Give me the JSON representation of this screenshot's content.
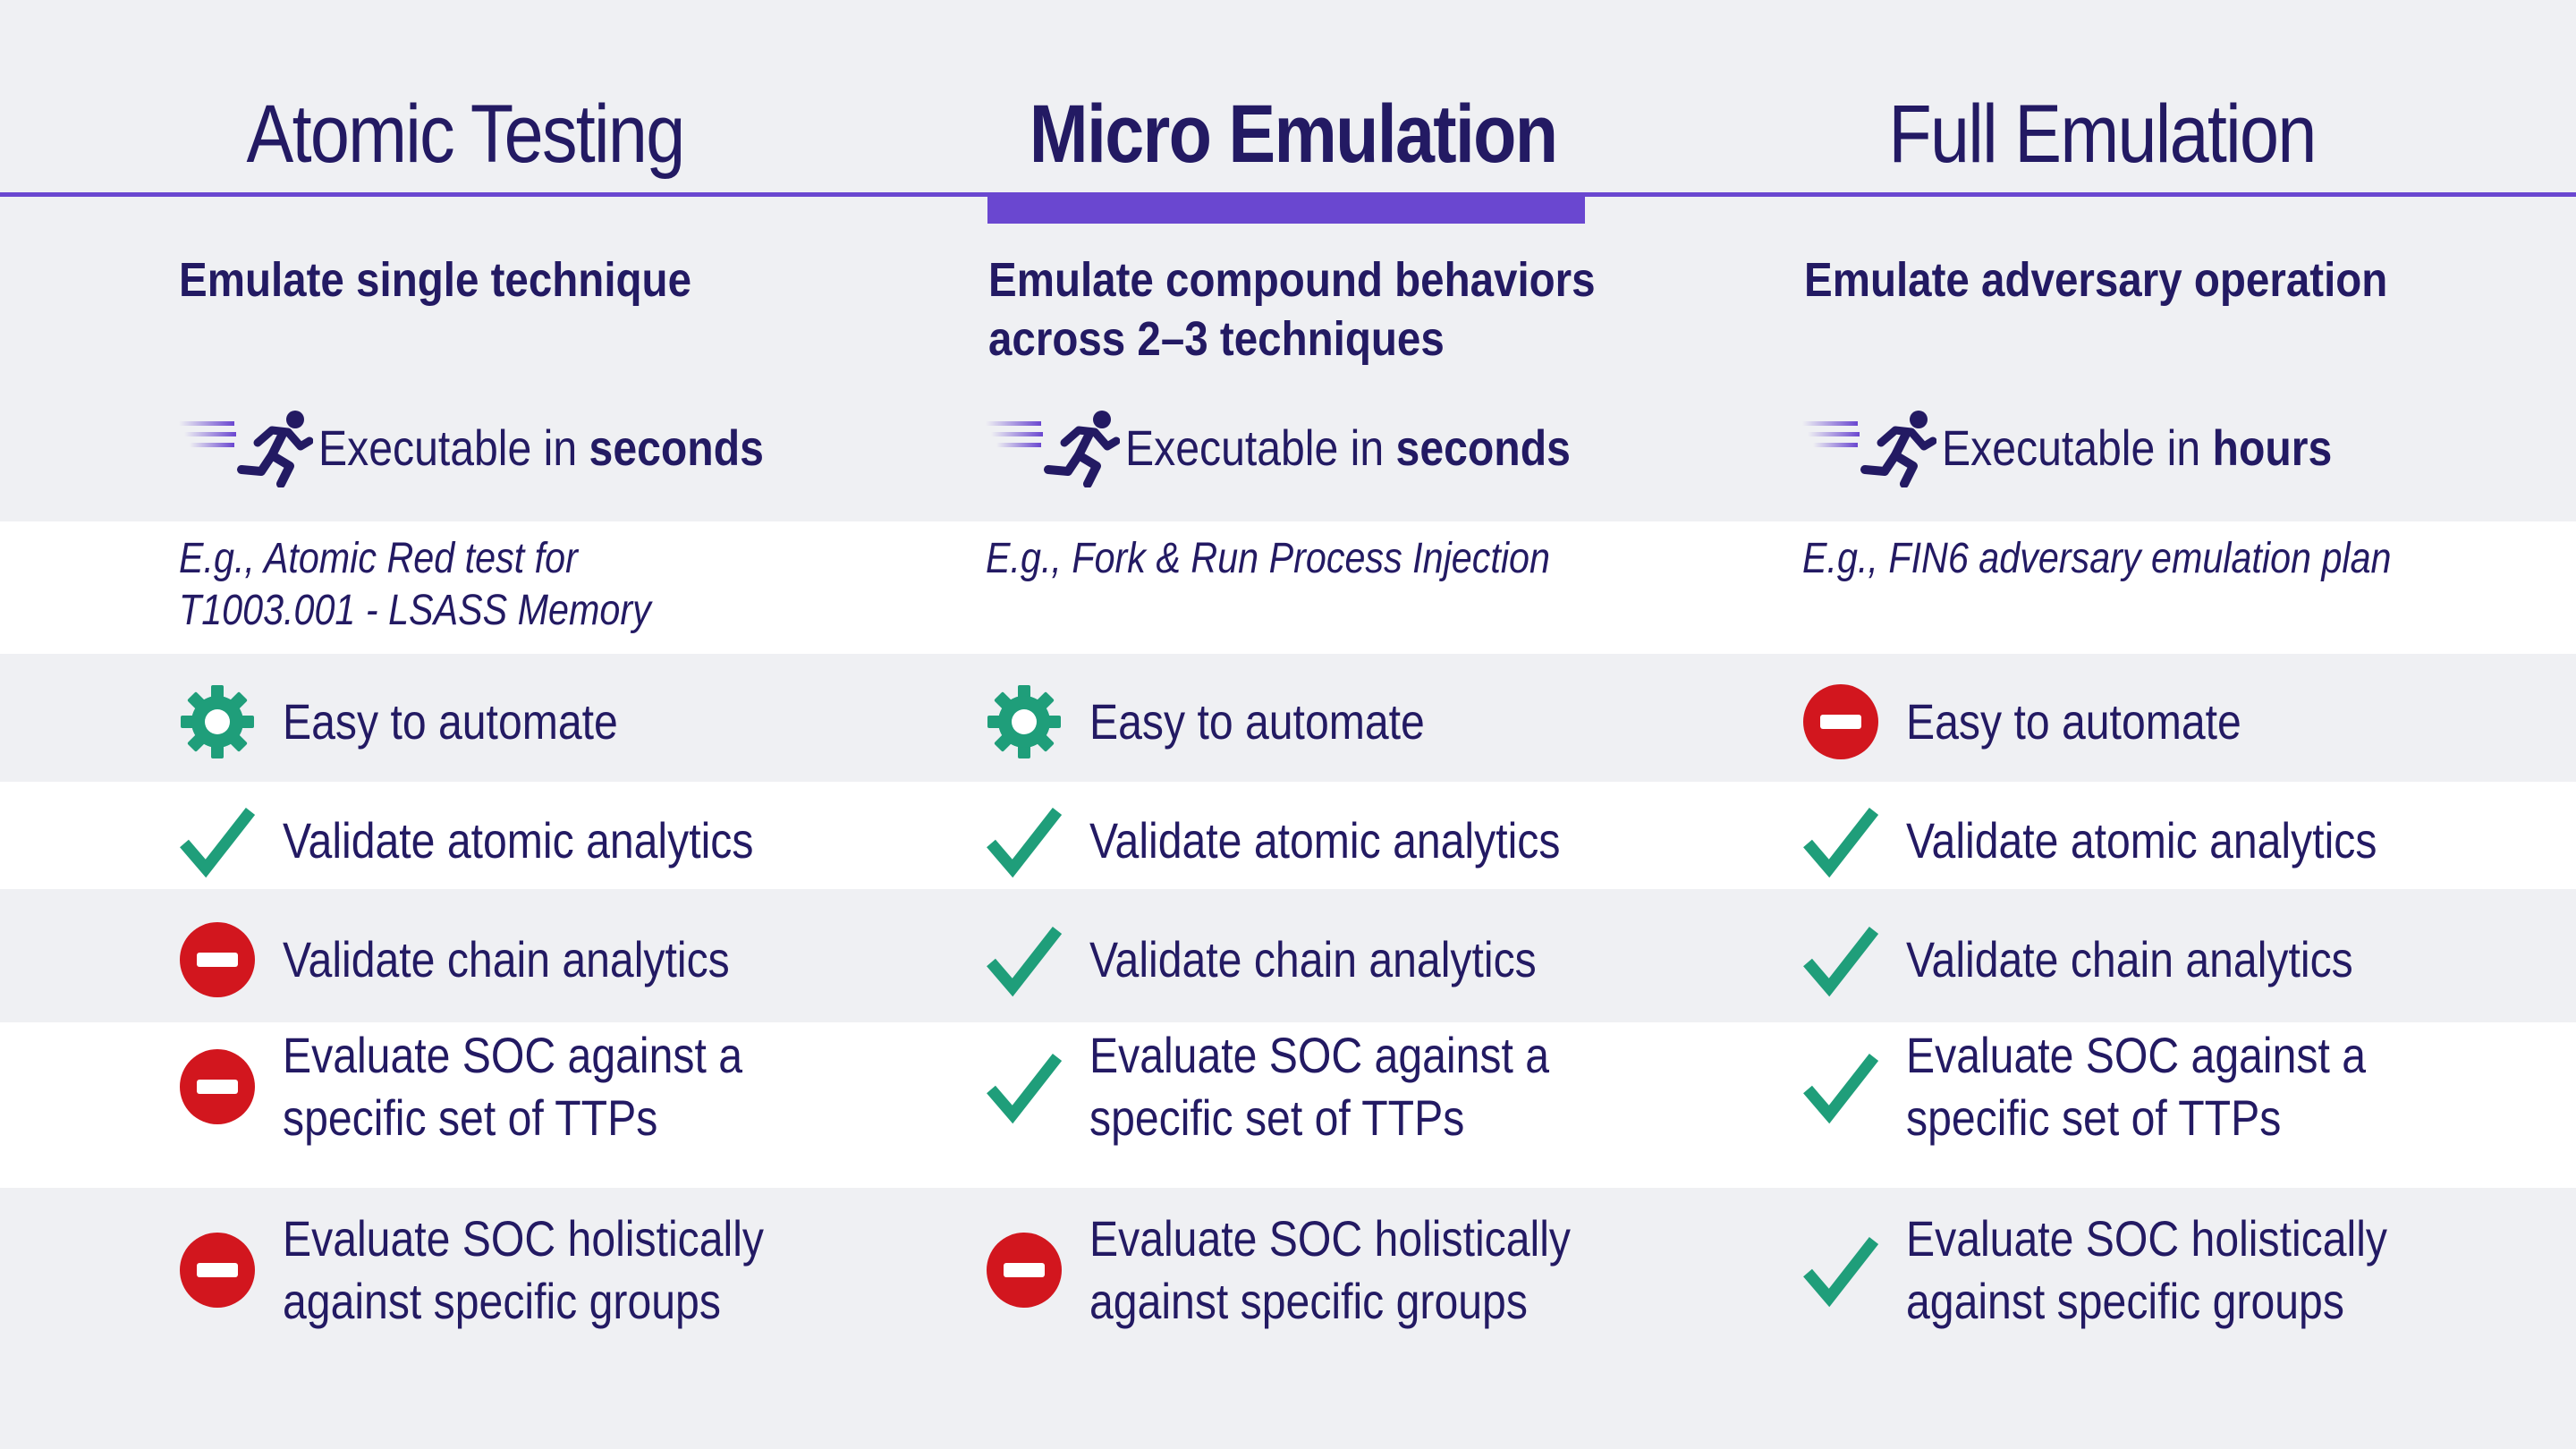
{
  "columns": [
    {
      "title": "Atomic Testing",
      "subtitle": [
        "Emulate single technique",
        ""
      ],
      "exec_prefix": "Executable in",
      "exec_bold": "seconds",
      "example": [
        "E.g., Atomic Red test for",
        "T1003.001 - LSASS Memory"
      ],
      "rows": [
        {
          "icon": "gear-icon",
          "lines": [
            "Easy to automate",
            ""
          ]
        },
        {
          "icon": "check-icon",
          "lines": [
            "Validate atomic analytics",
            ""
          ]
        },
        {
          "icon": "no-entry-icon",
          "lines": [
            "Validate chain analytics",
            ""
          ]
        },
        {
          "icon": "no-entry-icon",
          "lines": [
            "Evaluate SOC against a",
            "specific set of TTPs"
          ]
        },
        {
          "icon": "no-entry-icon",
          "lines": [
            "Evaluate SOC holistically",
            "against specific groups"
          ]
        }
      ]
    },
    {
      "title": "Micro Emulation",
      "subtitle": [
        "Emulate compound behaviors",
        "across 2–3 techniques"
      ],
      "exec_prefix": "Executable in",
      "exec_bold": "seconds",
      "example": [
        "E.g., Fork & Run Process Injection",
        ""
      ],
      "rows": [
        {
          "icon": "gear-icon",
          "lines": [
            "Easy to automate",
            ""
          ]
        },
        {
          "icon": "check-icon",
          "lines": [
            "Validate atomic analytics",
            ""
          ]
        },
        {
          "icon": "check-icon",
          "lines": [
            "Validate chain analytics",
            ""
          ]
        },
        {
          "icon": "check-icon",
          "lines": [
            "Evaluate SOC against a",
            "specific set of TTPs"
          ]
        },
        {
          "icon": "no-entry-icon",
          "lines": [
            "Evaluate SOC holistically",
            "against specific groups"
          ]
        }
      ]
    },
    {
      "title": "Full Emulation",
      "subtitle": [
        "Emulate adversary operation",
        ""
      ],
      "exec_prefix": "Executable in",
      "exec_bold": "hours",
      "example": [
        "E.g., FIN6 adversary emulation plan",
        ""
      ],
      "rows": [
        {
          "icon": "no-entry-icon",
          "lines": [
            "Easy to automate",
            ""
          ]
        },
        {
          "icon": "check-icon",
          "lines": [
            "Validate atomic analytics",
            ""
          ]
        },
        {
          "icon": "check-icon",
          "lines": [
            "Validate chain analytics",
            ""
          ]
        },
        {
          "icon": "check-icon",
          "lines": [
            "Evaluate SOC against a",
            "specific set of TTPs"
          ]
        },
        {
          "icon": "check-icon",
          "lines": [
            "Evaluate SOC holistically",
            "against specific groups"
          ]
        }
      ]
    }
  ],
  "colors": {
    "navy": "#231a63",
    "purple": "#6a47d0",
    "green": "#1f9e7a",
    "red": "#d2161e",
    "grey_band": "#eff0f3",
    "white_band": "#ffffff"
  }
}
